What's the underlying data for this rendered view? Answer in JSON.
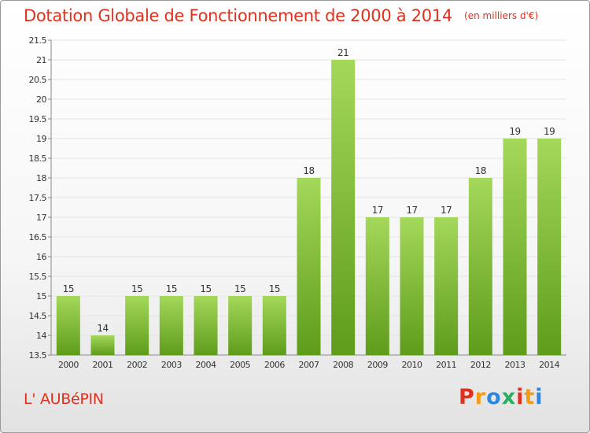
{
  "header": {
    "title": "Dotation Globale de Fonctionnement de 2000 à 2014",
    "subtitle": "(en milliers d'€)"
  },
  "footer": {
    "commune": "L' AUBéPIN",
    "brand": [
      "P",
      "r",
      "o",
      "x",
      "i",
      "t",
      "i"
    ]
  },
  "colors": {
    "title": "#e0301e",
    "bar_top": "#a4d85a",
    "bar_bottom": "#5f9c1c",
    "brand_letters": [
      "#e0301e",
      "#f39c12",
      "#2e86de",
      "#27ae60",
      "#e0301e",
      "#f39c12",
      "#2e86de"
    ]
  },
  "chart_data": {
    "type": "bar",
    "categories": [
      "2000",
      "2001",
      "2002",
      "2003",
      "2004",
      "2005",
      "2006",
      "2007",
      "2008",
      "2009",
      "2010",
      "2011",
      "2012",
      "2013",
      "2014"
    ],
    "values": [
      15,
      14,
      15,
      15,
      15,
      15,
      15,
      18,
      21,
      17,
      17,
      17,
      18,
      19,
      19
    ],
    "value_labels": [
      "15",
      "14",
      "15",
      "15",
      "15",
      "15",
      "15",
      "18",
      "21",
      "17",
      "17",
      "17",
      "18",
      "19",
      "19"
    ],
    "y_ticks": [
      "13.5",
      "14",
      "14.5",
      "15",
      "15.5",
      "16",
      "16.5",
      "17",
      "17.5",
      "18",
      "18.5",
      "19",
      "19.5",
      "20",
      "20.5",
      "21",
      "21.5"
    ],
    "ylim": [
      13.5,
      21.5
    ],
    "grid": true
  }
}
